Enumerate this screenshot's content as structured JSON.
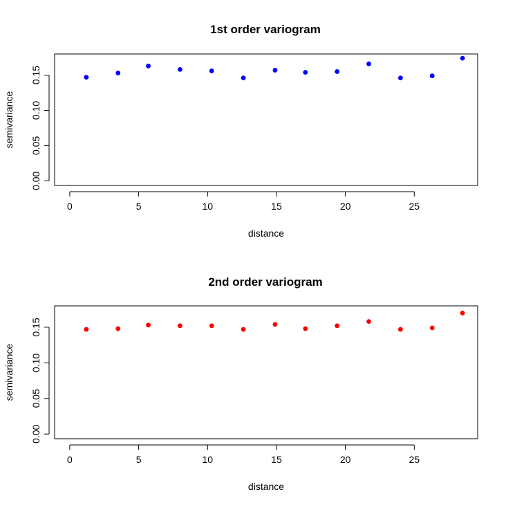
{
  "chart_data": [
    {
      "type": "scatter",
      "title": "1st order variogram",
      "xlabel": "distance",
      "ylabel": "semivariance",
      "xlim": [
        -1.1,
        29.6
      ],
      "ylim": [
        -0.0066,
        0.18
      ],
      "x_ticks": [
        0,
        5,
        10,
        15,
        20,
        25
      ],
      "y_ticks": [
        0.0,
        0.05,
        0.1,
        0.15
      ],
      "y_tick_labels": [
        "0.00",
        "0.05",
        "0.10",
        "0.15"
      ],
      "grid": false,
      "marker_color": "#0000ff",
      "x": [
        1.2,
        3.5,
        5.7,
        8.0,
        10.3,
        12.6,
        14.9,
        17.1,
        19.4,
        21.7,
        24.0,
        26.3,
        28.5
      ],
      "y": [
        0.147,
        0.153,
        0.163,
        0.158,
        0.156,
        0.146,
        0.157,
        0.154,
        0.155,
        0.166,
        0.146,
        0.149,
        0.174
      ]
    },
    {
      "type": "scatter",
      "title": "2nd order variogram",
      "xlabel": "distance",
      "ylabel": "semivariance",
      "xlim": [
        -1.1,
        29.6
      ],
      "ylim": [
        -0.0066,
        0.18
      ],
      "x_ticks": [
        0,
        5,
        10,
        15,
        20,
        25
      ],
      "y_ticks": [
        0.0,
        0.05,
        0.1,
        0.15
      ],
      "y_tick_labels": [
        "0.00",
        "0.05",
        "0.10",
        "0.15"
      ],
      "grid": false,
      "marker_color": "#ff0000",
      "x": [
        1.2,
        3.5,
        5.7,
        8.0,
        10.3,
        12.6,
        14.9,
        17.1,
        19.4,
        21.7,
        24.0,
        26.3,
        28.5
      ],
      "y": [
        0.147,
        0.148,
        0.153,
        0.152,
        0.152,
        0.147,
        0.154,
        0.148,
        0.152,
        0.158,
        0.147,
        0.149,
        0.17
      ]
    }
  ]
}
